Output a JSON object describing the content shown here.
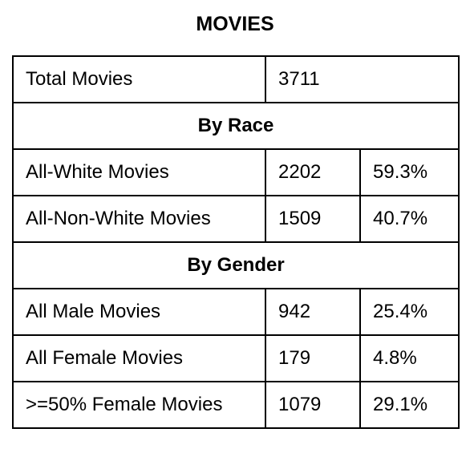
{
  "title": "MOVIES",
  "total": {
    "label": "Total Movies",
    "count": "3711"
  },
  "race": {
    "header": "By Race",
    "rows": [
      {
        "label": "All-White Movies",
        "count": "2202",
        "percent": "59.3%"
      },
      {
        "label": "All-Non-White Movies",
        "count": "1509",
        "percent": "40.7%"
      }
    ]
  },
  "gender": {
    "header": "By Gender",
    "rows": [
      {
        "label": "All Male Movies",
        "count": "942",
        "percent": "25.4%"
      },
      {
        "label": "All Female Movies",
        "count": "179",
        "percent": "4.8%"
      },
      {
        "label": ">=50% Female Movies",
        "count": "1079",
        "percent": "29.1%"
      }
    ]
  }
}
